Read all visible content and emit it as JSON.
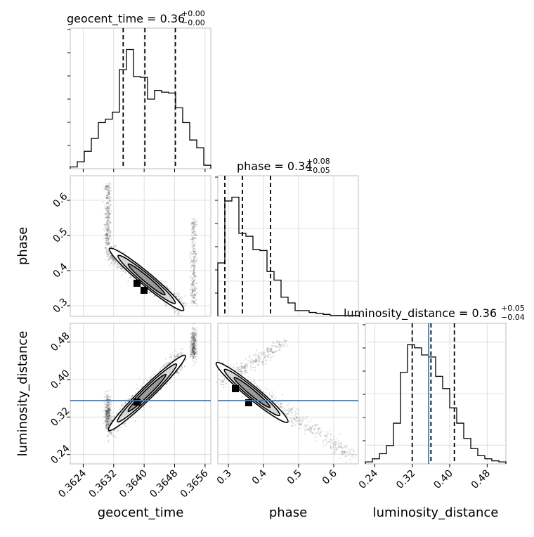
{
  "chart_data": {
    "type": "corner",
    "parameters": [
      "geocent_time",
      "phase",
      "luminosity_distance"
    ],
    "titles": {
      "geocent_time": "geocent_time = 0.36",
      "geocent_time_up": "+0.00",
      "geocent_time_lo": "−0.00",
      "phase": "phase = 0.34",
      "phase_up": "+0.08",
      "phase_lo": "−0.05",
      "luminosity_distance": "luminosity_distance = 0.36",
      "luminosity_distance_up": "+0.05",
      "luminosity_distance_lo": "−0.04"
    },
    "axis_labels": {
      "geocent_time": "geocent_time",
      "phase": "phase",
      "luminosity_distance": "luminosity_distance"
    },
    "ranges": {
      "geocent_time": [
        0.36206,
        0.36575
      ],
      "phase": [
        0.27,
        0.67
      ],
      "luminosity_distance": [
        0.22,
        0.52
      ]
    },
    "ticks": {
      "geocent_time": [
        {
          "v": 0.3624,
          "l": "0.3624"
        },
        {
          "v": 0.3632,
          "l": "0.3632"
        },
        {
          "v": 0.364,
          "l": "0.3640"
        },
        {
          "v": 0.3648,
          "l": "0.3648"
        },
        {
          "v": 0.3656,
          "l": "0.3656"
        }
      ],
      "phase": [
        {
          "v": 0.3,
          "l": "0.3"
        },
        {
          "v": 0.4,
          "l": "0.4"
        },
        {
          "v": 0.5,
          "l": "0.5"
        },
        {
          "v": 0.6,
          "l": "0.6"
        }
      ],
      "luminosity_distance": [
        {
          "v": 0.24,
          "l": "0.24"
        },
        {
          "v": 0.32,
          "l": "0.32"
        },
        {
          "v": 0.4,
          "l": "0.40"
        },
        {
          "v": 0.48,
          "l": "0.48"
        }
      ]
    },
    "phase_row_ticks": [
      {
        "v": 0.3,
        "l": "0.3"
      },
      {
        "v": 0.4,
        "l": "0.4"
      },
      {
        "v": 0.5,
        "l": "0.5"
      },
      {
        "v": 0.6,
        "l": "0.6"
      }
    ],
    "quantiles": {
      "geocent_time": [
        0.36345,
        0.36402,
        0.36482
      ],
      "phase": [
        0.29,
        0.34,
        0.42
      ],
      "luminosity_distance": [
        0.32,
        0.36,
        0.41
      ]
    },
    "truth": {
      "luminosity_distance": 0.355
    },
    "histograms": {
      "geocent_time": [
        2,
        8,
        20,
        35,
        53,
        57,
        65,
        114,
        137,
        106,
        105,
        80,
        90,
        88,
        87,
        70,
        53,
        33,
        24,
        4
      ],
      "phase": [
        56,
        121,
        125,
        87,
        84,
        70,
        69,
        47,
        38,
        20,
        14,
        6,
        6,
        4,
        3,
        2,
        1,
        1,
        1,
        1
      ],
      "luminosity_distance": [
        2,
        5,
        10,
        18,
        40,
        90,
        117,
        114,
        107,
        105,
        86,
        74,
        55,
        40,
        25,
        15,
        8,
        5,
        3,
        2
      ]
    },
    "grid": true
  }
}
